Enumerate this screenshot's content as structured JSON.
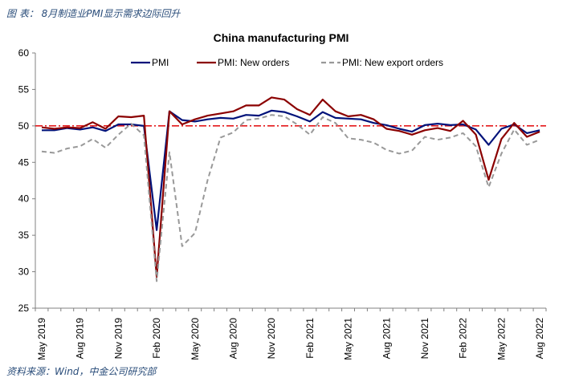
{
  "figure_caption": "图 表： 8月制造业PMI显示需求边际回升",
  "source_note": "资料来源：Wind，中金公司研究部",
  "chart_data": {
    "type": "line",
    "title": "China manufacturing PMI",
    "xlabel": "",
    "ylabel": "",
    "ylim": [
      25,
      60
    ],
    "yticks": [
      25,
      30,
      35,
      40,
      45,
      50,
      55,
      60
    ],
    "grid": false,
    "legend_position": "top",
    "reference_line": {
      "y": 50,
      "style": "dash-dot",
      "color": "#e41a1c"
    },
    "x": [
      "May 2019",
      "Jun 2019",
      "Jul 2019",
      "Aug 2019",
      "Sep 2019",
      "Oct 2019",
      "Nov 2019",
      "Dec 2019",
      "Jan 2020",
      "Feb 2020",
      "Mar 2020",
      "Apr 2020",
      "May 2020",
      "Jun 2020",
      "Jul 2020",
      "Aug 2020",
      "Sep 2020",
      "Oct 2020",
      "Nov 2020",
      "Dec 2020",
      "Jan 2021",
      "Feb 2021",
      "Mar 2021",
      "Apr 2021",
      "May 2021",
      "Jun 2021",
      "Jul 2021",
      "Aug 2021",
      "Sep 2021",
      "Oct 2021",
      "Nov 2021",
      "Dec 2021",
      "Jan 2022",
      "Feb 2022",
      "Mar 2022",
      "Apr 2022",
      "May 2022",
      "Jun 2022",
      "Jul 2022",
      "Aug 2022"
    ],
    "x_tick_labels": [
      "May 2019",
      "Aug 2019",
      "Nov 2019",
      "Feb 2020",
      "May 2020",
      "Aug 2020",
      "Nov 2020",
      "Feb 2021",
      "May 2021",
      "Aug 2021",
      "Nov 2021",
      "Feb 2022",
      "May 2022",
      "Aug 2022"
    ],
    "series": [
      {
        "name": "PMI",
        "color": "#00127a",
        "dash": "solid",
        "values": [
          49.4,
          49.4,
          49.7,
          49.5,
          49.8,
          49.3,
          50.2,
          50.2,
          50.0,
          35.7,
          52.0,
          50.8,
          50.6,
          50.9,
          51.1,
          51.0,
          51.5,
          51.4,
          52.1,
          51.9,
          51.3,
          50.6,
          51.9,
          51.1,
          51.0,
          50.9,
          50.4,
          50.1,
          49.6,
          49.2,
          50.1,
          50.3,
          50.1,
          50.2,
          49.5,
          47.4,
          49.6,
          50.2,
          49.0,
          49.4
        ]
      },
      {
        "name": "PMI: New orders",
        "color": "#8b0000",
        "dash": "solid",
        "values": [
          49.8,
          49.6,
          49.8,
          49.7,
          50.5,
          49.6,
          51.3,
          51.2,
          51.4,
          29.3,
          52.0,
          50.2,
          50.9,
          51.4,
          51.7,
          52.0,
          52.8,
          52.8,
          53.9,
          53.6,
          52.3,
          51.5,
          53.6,
          52.0,
          51.3,
          51.5,
          50.9,
          49.6,
          49.3,
          48.8,
          49.4,
          49.7,
          49.3,
          50.7,
          48.8,
          42.6,
          48.2,
          50.4,
          48.5,
          49.2
        ]
      },
      {
        "name": "PMI: New export orders",
        "color": "#999999",
        "dash": "dashed",
        "values": [
          46.5,
          46.3,
          46.9,
          47.2,
          48.2,
          47.0,
          48.8,
          50.3,
          48.7,
          28.7,
          46.4,
          33.5,
          35.3,
          42.6,
          48.4,
          49.1,
          50.8,
          51.0,
          51.5,
          51.3,
          50.2,
          48.8,
          51.2,
          50.4,
          48.3,
          48.1,
          47.7,
          46.7,
          46.2,
          46.6,
          48.5,
          48.1,
          48.4,
          49.0,
          47.2,
          41.6,
          46.2,
          49.5,
          47.4,
          48.1
        ]
      }
    ]
  }
}
